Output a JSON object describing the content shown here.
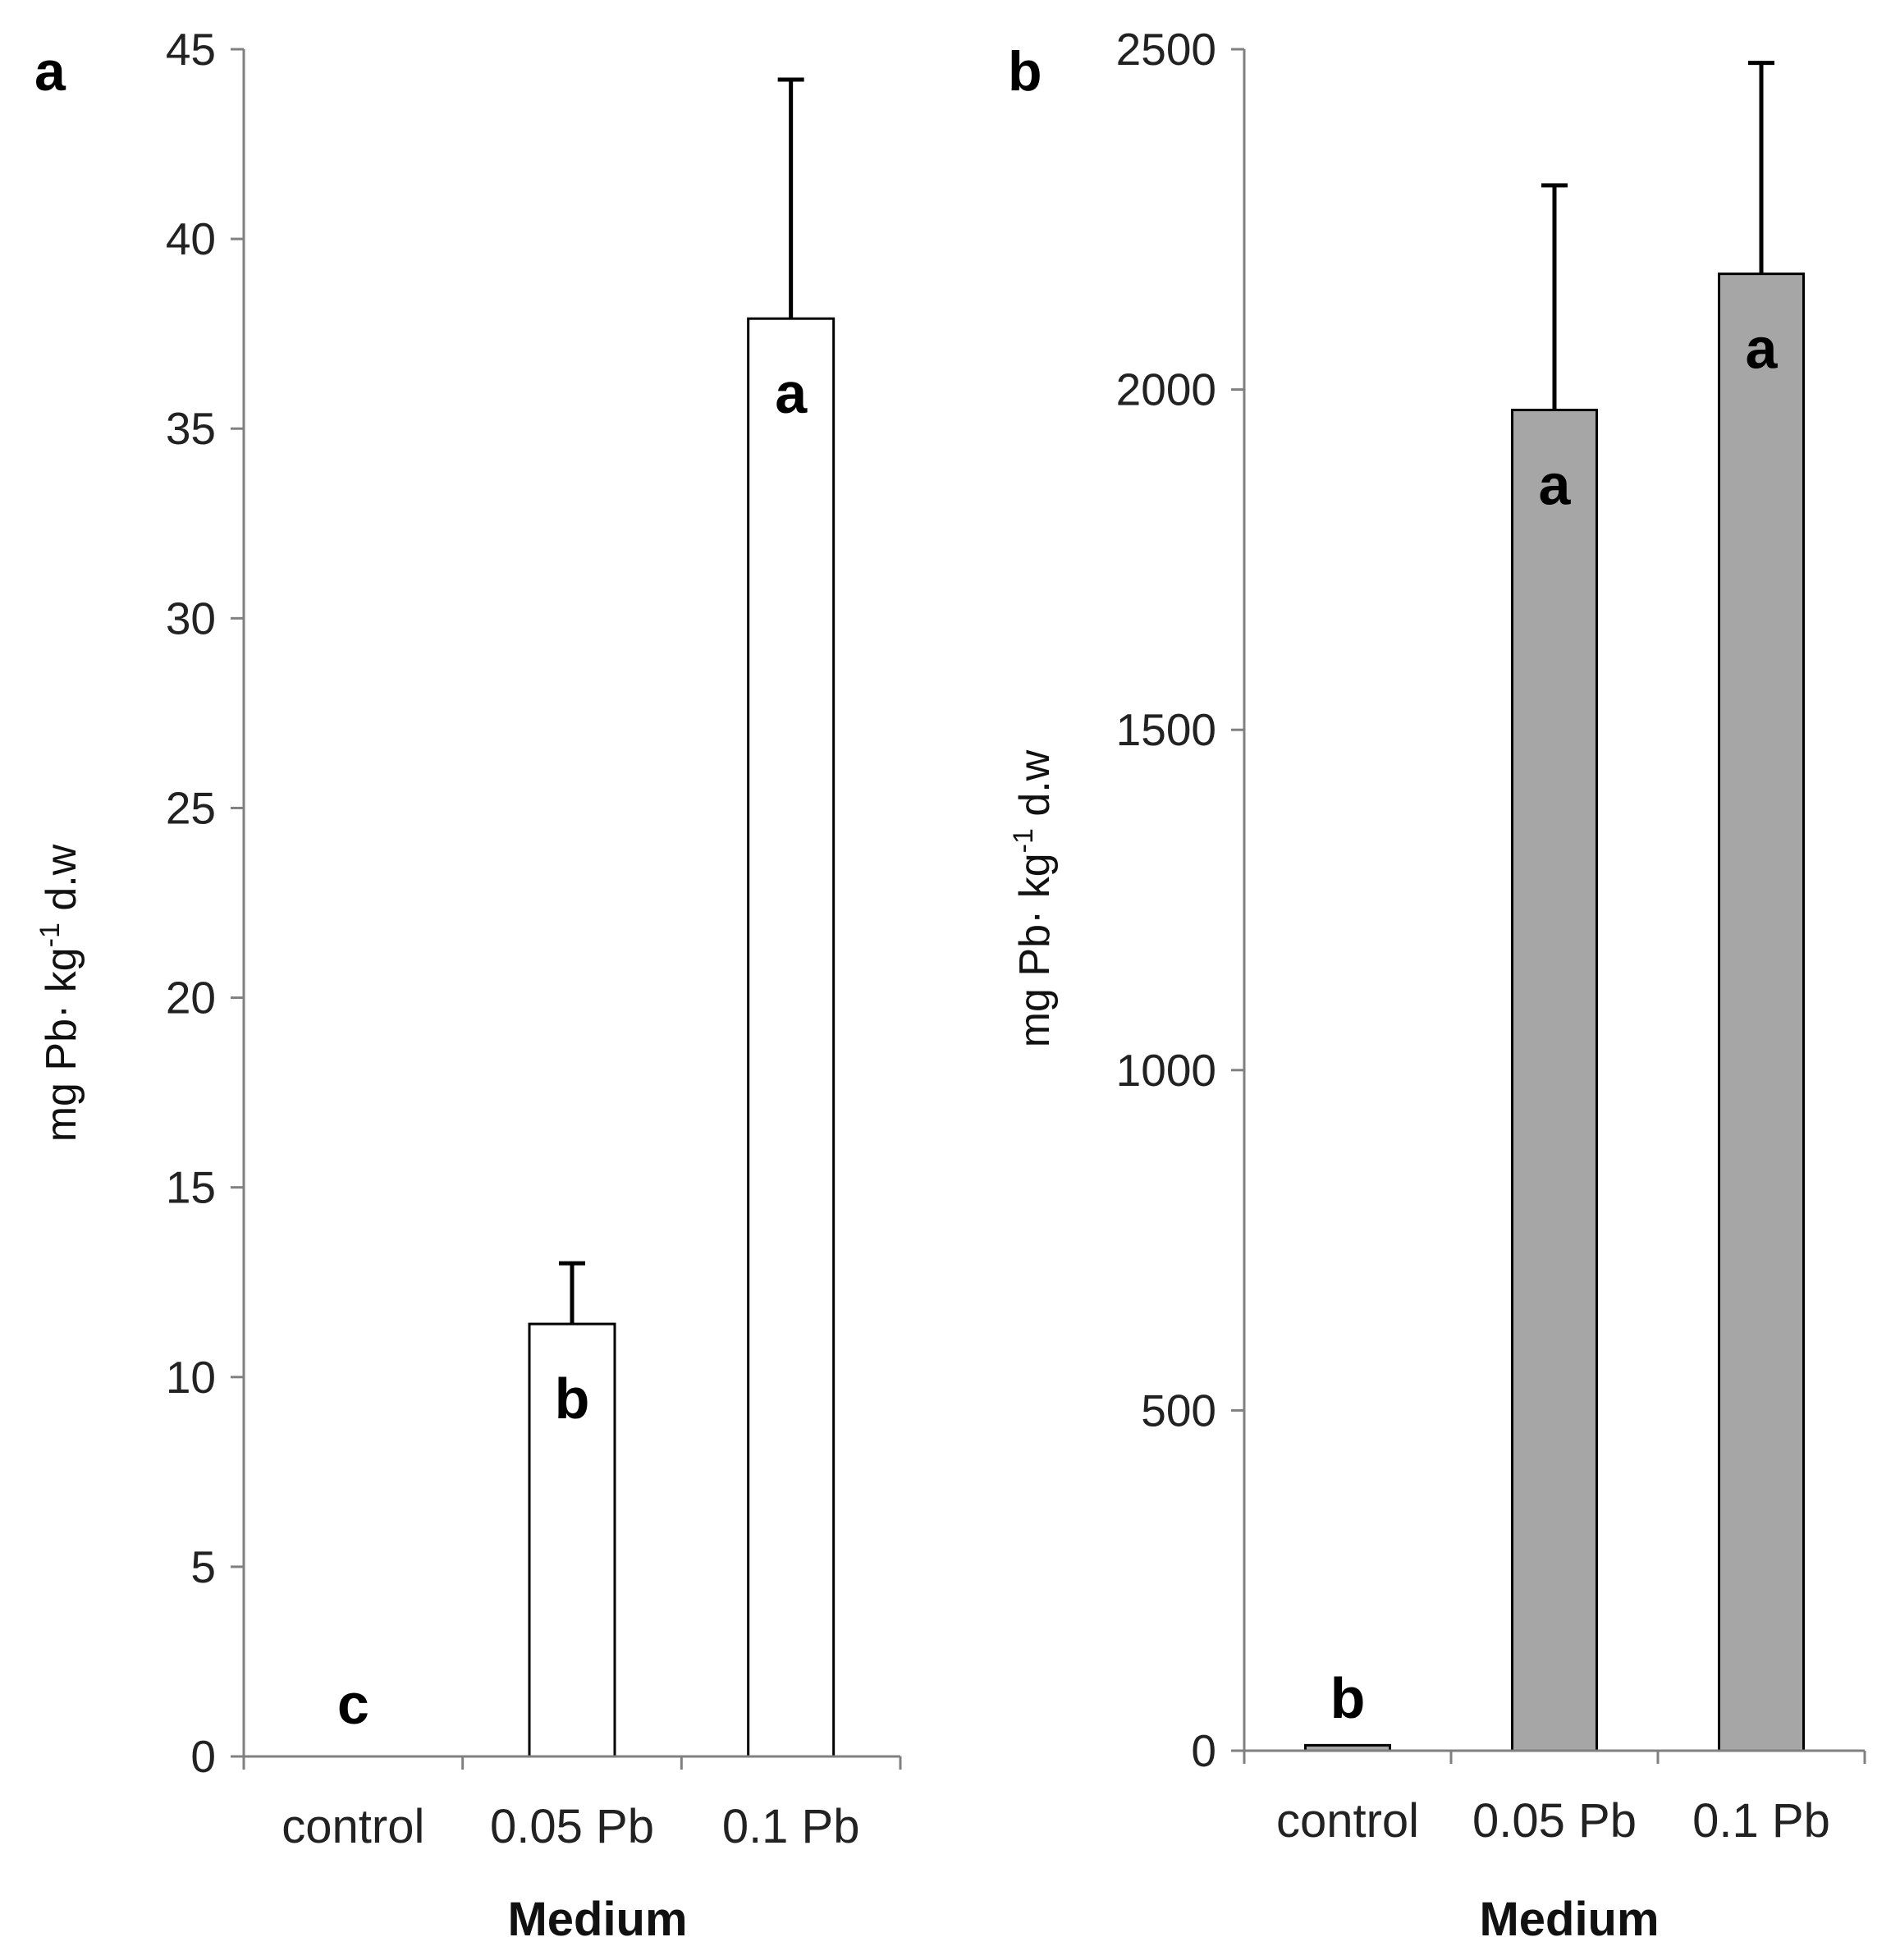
{
  "chart_data": [
    {
      "type": "bar",
      "panel_label": "a",
      "categories": [
        "control",
        "0.05 Pb",
        "0.1 Pb"
      ],
      "values": [
        0,
        11.4,
        37.9
      ],
      "error_upper": [
        0,
        13.0,
        44.2
      ],
      "significance": [
        "c",
        "b",
        "a"
      ],
      "bar_fill": "#ffffff",
      "xlabel": "Medium",
      "ylabel": {
        "main": "mg Pb· kg",
        "sup": "-1",
        "tail": " d.w"
      },
      "ylim": [
        0,
        45
      ],
      "yticks": [
        "0",
        "5",
        "10",
        "15",
        "20",
        "25",
        "30",
        "35",
        "40",
        "45"
      ],
      "grid": false
    },
    {
      "type": "bar",
      "panel_label": "b",
      "categories": [
        "control",
        "0.05 Pb",
        "0.1 Pb"
      ],
      "values": [
        8,
        1970,
        2170
      ],
      "error_upper": [
        8,
        2300,
        2480
      ],
      "significance": [
        "b",
        "a",
        "a"
      ],
      "bar_fill": "#a6a6a6",
      "xlabel": "Medium",
      "ylabel": {
        "main": "mg Pb· kg",
        "sup": "-1",
        "tail": " d.w"
      },
      "ylim": [
        0,
        2500
      ],
      "yticks": [
        "0",
        "500",
        "1000",
        "1500",
        "2000",
        "2500"
      ],
      "grid": false
    }
  ],
  "colors": {
    "axis": "#808080",
    "bar_stroke": "#000000",
    "error_bar": "#000000"
  }
}
